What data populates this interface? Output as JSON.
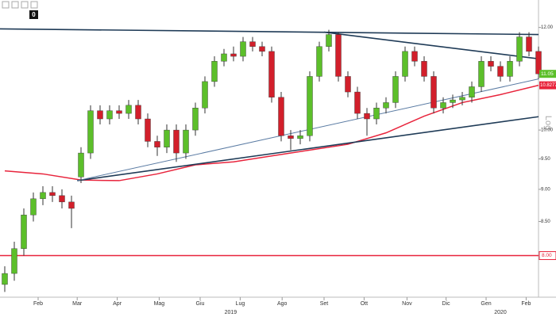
{
  "chart_data": {
    "type": "candlestick",
    "badge": "0",
    "scale_label": "Log",
    "log_scale": true,
    "xlim": [
      -0.5,
      56
    ],
    "ylim": [
      7.43,
      12.6
    ],
    "yticks": [
      {
        "value": 12,
        "label": "12.00"
      },
      {
        "value": 10,
        "label": "10.00"
      },
      {
        "value": 9.5,
        "label": "9.50"
      },
      {
        "value": 9,
        "label": "9.00"
      },
      {
        "value": 8.5,
        "label": "8.50"
      }
    ],
    "xticks": [
      {
        "value": 3.5,
        "label": "Feb"
      },
      {
        "value": 7.6,
        "label": "Mar"
      },
      {
        "value": 11.8,
        "label": "Apr"
      },
      {
        "value": 16.2,
        "label": "Mag"
      },
      {
        "value": 20.5,
        "label": "Giu"
      },
      {
        "value": 24.7,
        "label": "Lug"
      },
      {
        "value": 29.1,
        "label": "Ago"
      },
      {
        "value": 33.5,
        "label": "Set"
      },
      {
        "value": 37.7,
        "label": "Ott"
      },
      {
        "value": 42.2,
        "label": "Nov"
      },
      {
        "value": 46.3,
        "label": "Dic"
      },
      {
        "value": 50.5,
        "label": "Gen"
      },
      {
        "value": 54.7,
        "label": "Feb"
      }
    ],
    "year_ticks": [
      {
        "value": 23.7,
        "label": "2019"
      },
      {
        "value": 52,
        "label": "2020"
      }
    ],
    "up_color": "#5cbf2a",
    "down_color": "#d21f2b",
    "x": [
      0,
      1,
      2,
      3,
      4,
      5,
      6,
      7,
      8,
      9,
      10,
      11,
      12,
      13,
      14,
      15,
      16,
      17,
      18,
      19,
      20,
      21,
      22,
      23,
      24,
      25,
      26,
      27,
      28,
      29,
      30,
      31,
      32,
      33,
      34,
      35,
      36,
      37,
      38,
      39,
      40,
      41,
      42,
      43,
      44,
      45,
      46,
      47,
      48,
      49,
      50,
      51,
      52,
      53,
      54,
      55,
      56
    ],
    "open": [
      7.6,
      7.75,
      8.1,
      8.6,
      8.85,
      8.95,
      8.9,
      8.8,
      9.2,
      9.6,
      10.35,
      10.2,
      10.35,
      10.3,
      10.45,
      10.2,
      9.8,
      9.7,
      10.0,
      9.6,
      10.0,
      10.4,
      10.9,
      11.3,
      11.45,
      11.4,
      11.7,
      11.6,
      11.5,
      10.6,
      9.9,
      9.85,
      9.9,
      11.0,
      11.6,
      11.85,
      11.0,
      10.7,
      10.3,
      10.2,
      10.4,
      10.5,
      11.0,
      11.5,
      11.3,
      11.0,
      10.4,
      10.5,
      10.55,
      10.6,
      10.8,
      11.3,
      11.2,
      11.0,
      11.3,
      11.8,
      11.5
    ],
    "high": [
      7.85,
      8.2,
      8.7,
      8.95,
      9.05,
      9.05,
      9.0,
      8.9,
      9.7,
      10.45,
      10.45,
      10.45,
      10.45,
      10.55,
      10.55,
      10.3,
      9.9,
      10.1,
      10.1,
      10.1,
      10.5,
      11.0,
      11.4,
      11.55,
      11.6,
      11.8,
      11.8,
      11.7,
      11.6,
      10.7,
      10.0,
      10.0,
      11.1,
      11.7,
      11.95,
      11.9,
      11.1,
      10.8,
      10.4,
      10.5,
      10.6,
      11.1,
      11.6,
      11.6,
      11.4,
      11.1,
      10.6,
      10.65,
      10.7,
      10.9,
      11.4,
      11.4,
      11.3,
      11.4,
      11.9,
      11.9,
      11.6
    ],
    "low": [
      7.5,
      7.65,
      8.0,
      8.5,
      8.75,
      8.8,
      8.7,
      8.4,
      9.1,
      9.5,
      10.1,
      10.1,
      10.2,
      10.2,
      10.1,
      9.7,
      9.55,
      9.6,
      9.45,
      9.5,
      9.9,
      10.3,
      10.8,
      11.2,
      11.3,
      11.3,
      11.5,
      11.4,
      10.5,
      9.8,
      9.65,
      9.75,
      9.8,
      10.9,
      11.5,
      10.9,
      10.6,
      10.2,
      9.9,
      10.1,
      10.3,
      10.4,
      10.9,
      11.2,
      10.9,
      10.3,
      10.3,
      10.4,
      10.45,
      10.5,
      10.7,
      11.1,
      10.9,
      10.9,
      11.2,
      11.4,
      10.95
    ],
    "close": [
      7.75,
      8.1,
      8.6,
      8.85,
      8.95,
      8.9,
      8.8,
      8.7,
      9.6,
      10.35,
      10.2,
      10.35,
      10.3,
      10.45,
      10.2,
      9.8,
      9.7,
      10.0,
      9.6,
      10.0,
      10.4,
      10.9,
      11.3,
      11.45,
      11.4,
      11.7,
      11.6,
      11.5,
      10.6,
      9.9,
      9.85,
      9.9,
      11.0,
      11.6,
      11.85,
      11.0,
      10.7,
      10.3,
      10.2,
      10.4,
      10.5,
      11.0,
      11.5,
      11.3,
      11.0,
      10.4,
      10.5,
      10.55,
      10.6,
      10.8,
      11.3,
      11.2,
      11.0,
      11.3,
      11.8,
      11.5,
      11.05
    ],
    "moving_average": {
      "color": "#e8243c",
      "x": [
        0,
        4,
        8,
        12,
        16,
        20,
        24,
        28,
        32,
        36,
        40,
        44,
        48,
        52,
        56
      ],
      "values": [
        9.3,
        9.25,
        9.15,
        9.14,
        9.25,
        9.4,
        9.45,
        9.55,
        9.65,
        9.75,
        9.95,
        10.25,
        10.5,
        10.65,
        10.8277
      ]
    },
    "trendlines": [
      {
        "color": "#1f3b57",
        "x": [
          -0.5,
          56
        ],
        "values": [
          11.97,
          11.85
        ]
      },
      {
        "color": "#1f3b57",
        "x": [
          33.5,
          56
        ],
        "values": [
          11.9,
          11.35
        ]
      },
      {
        "color": "#1f3b57",
        "x": [
          7.6,
          56
        ],
        "values": [
          9.14,
          10.24
        ]
      },
      {
        "color": "#5a7ba3",
        "x": [
          7.6,
          56
        ],
        "values": [
          9.14,
          10.95
        ]
      }
    ],
    "levels": [
      {
        "value": 8,
        "label": "8.00",
        "color": "#e8243c"
      }
    ]
  }
}
